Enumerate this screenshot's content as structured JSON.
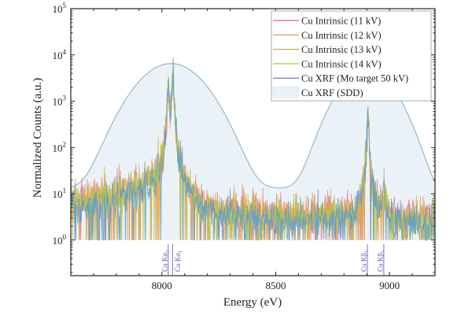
{
  "chart_data": {
    "type": "line",
    "xlabel": "Energy (eV)",
    "ylabel": "Normalized Counts (a.u.)",
    "xlim": [
      7600,
      9200
    ],
    "ylim_log10": [
      -0.77,
      5
    ],
    "yscale": "log",
    "x_ticks": [
      {
        "v": 8000,
        "label": "8000"
      },
      {
        "v": 8500,
        "label": "8500"
      },
      {
        "v": 9000,
        "label": "9000"
      }
    ],
    "y_ticks": [
      {
        "e": 0,
        "base": "10",
        "exp": "0"
      },
      {
        "e": 1,
        "base": "10",
        "exp": "1"
      },
      {
        "e": 2,
        "base": "10",
        "exp": "2"
      },
      {
        "e": 3,
        "base": "10",
        "exp": "3"
      },
      {
        "e": 4,
        "base": "10",
        "exp": "4"
      },
      {
        "e": 5,
        "base": "10",
        "exp": "5"
      }
    ],
    "legend_position": "top-right",
    "series": [
      {
        "name": "Cu Intrinsic (11 kV)",
        "color": "#e8606a",
        "trace": "#ef7a78",
        "scale": 1.15,
        "seed": 11
      },
      {
        "name": "Cu Intrinsic (12 kV)",
        "color": "#ee8a3c",
        "trace": "#f39a4e",
        "scale": 1.05,
        "seed": 12
      },
      {
        "name": "Cu Intrinsic (13 kV)",
        "color": "#c9a83a",
        "trace": "#d2b548",
        "scale": 1.0,
        "seed": 13
      },
      {
        "name": "Cu Intrinsic (14 kV)",
        "color": "#a8c83a",
        "trace": "#a9cc4a",
        "scale": 0.95,
        "seed": 14
      },
      {
        "name": "Cu XRF (Mo target 50 kV)",
        "color": "#5a66d6",
        "trace": "#5b9bd5",
        "scale": 0.8,
        "seed": 15
      }
    ],
    "sdd_series": {
      "name": "Cu XRF (SDD)",
      "line": "#9cbcd0",
      "fill": "#eaf2f8",
      "peaks": [
        {
          "center": 8040,
          "amplitude": 6500,
          "sigma": 105
        },
        {
          "center": 8900,
          "amplitude": 4900,
          "sigma": 85
        }
      ],
      "background": [
        13,
        8
      ]
    },
    "intrinsic_peaks": [
      {
        "center": 8028,
        "amplitude": 2300,
        "width": 3
      },
      {
        "center": 8048,
        "amplitude": 4500,
        "width": 3
      },
      {
        "center": 8905,
        "amplitude": 600,
        "width": 3
      },
      {
        "center": 8977,
        "amplitude": 7,
        "width": 8
      }
    ],
    "markers": [
      {
        "label": "Cu Kα",
        "sub": "2",
        "energy": 8028
      },
      {
        "label": "Cu Kα",
        "sub": "1",
        "energy": 8047
      },
      {
        "label": "Cu Kβ",
        "sub": "1",
        "energy": 8903
      },
      {
        "label": "Cu Kβ",
        "sub": "5",
        "energy": 8975
      }
    ]
  }
}
